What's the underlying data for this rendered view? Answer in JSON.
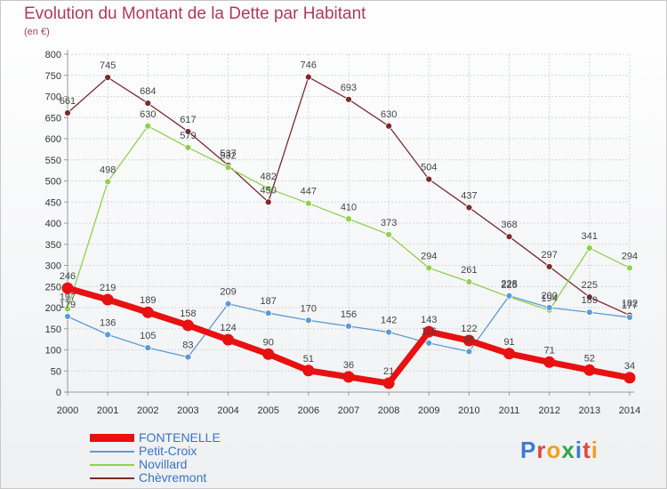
{
  "title": "Evolution du Montant de la Dette par Habitant",
  "subtitle": "(en €)",
  "logo": {
    "text": "Proxiti",
    "colors": [
      "#3a7bd5",
      "#e0483a",
      "#f0a020",
      "#2aa84a",
      "#3a7bd5",
      "#e0483a",
      "#f0a020"
    ]
  },
  "chart_data": {
    "type": "line",
    "x": [
      "2000",
      "2001",
      "2002",
      "2003",
      "2004",
      "2005",
      "2006",
      "2007",
      "2008",
      "2009",
      "2010",
      "2011",
      "2012",
      "2013",
      "2014"
    ],
    "ylim": [
      0,
      800
    ],
    "yticks": [
      "0",
      "50",
      "100",
      "150",
      "200",
      "250",
      "300",
      "350",
      "400",
      "450",
      "500",
      "550",
      "600",
      "650",
      "700",
      "750",
      "800"
    ],
    "grid": true,
    "legend_position": "bottom-left",
    "series": [
      {
        "name": "FONTENELLE",
        "color": "#e81010",
        "values": [
          246,
          219,
          189,
          158,
          124,
          90,
          51,
          36,
          21,
          143,
          122,
          91,
          71,
          52,
          34
        ],
        "labels": [
          "246",
          "219",
          "189",
          "158",
          "124",
          "90",
          "51",
          "36",
          "21",
          "143",
          "122",
          "91",
          "71",
          "52",
          "34"
        ]
      },
      {
        "name": "Petit-Croix",
        "color": "#5b9bd5",
        "values": [
          179,
          136,
          105,
          83,
          209,
          187,
          170,
          156,
          142,
          116,
          96,
          228,
          200,
          189,
          177
        ],
        "labels": [
          "179",
          "136",
          "105",
          "83",
          "209",
          "187",
          "170",
          "156",
          "142",
          "116",
          "96",
          "228",
          "200",
          "189",
          "177"
        ]
      },
      {
        "name": "Novillard",
        "color": "#8fd14f",
        "values": [
          197,
          498,
          630,
          579,
          532,
          482,
          447,
          410,
          373,
          294,
          261,
          225,
          194,
          341,
          294
        ],
        "labels": [
          "197",
          "498",
          "630",
          "579",
          "532",
          "482",
          "447",
          "410",
          "373",
          "294",
          "261",
          "225",
          "194",
          "341",
          "294"
        ]
      },
      {
        "name": "Chèvremont",
        "color": "#7b2a2e",
        "values": [
          661,
          745,
          684,
          617,
          537,
          450,
          746,
          693,
          630,
          504,
          437,
          368,
          297,
          225,
          182
        ],
        "labels": [
          "661",
          "745",
          "684",
          "617",
          "537",
          "450",
          "746",
          "693",
          "630",
          "504",
          "437",
          "368",
          "297",
          "225",
          "182"
        ]
      }
    ]
  }
}
